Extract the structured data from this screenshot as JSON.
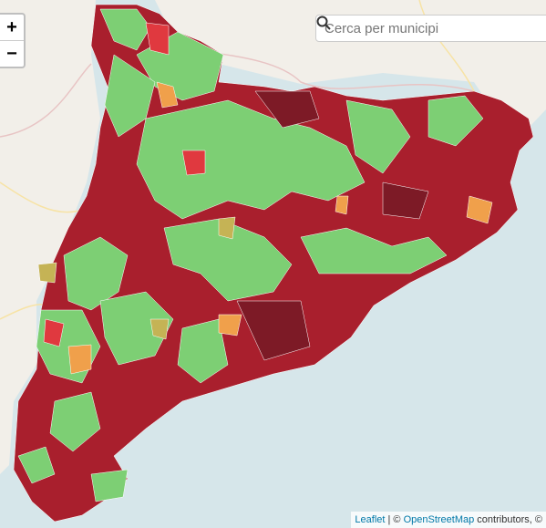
{
  "zoom_controls": {
    "zoom_in": "+",
    "zoom_out": "−"
  },
  "search": {
    "placeholder": "Cerca per municipi"
  },
  "attribution": {
    "leaflet": "Leaflet",
    "separator": " | © ",
    "osm": "OpenStreetMap",
    "contributors": " contributors, ©"
  }
}
